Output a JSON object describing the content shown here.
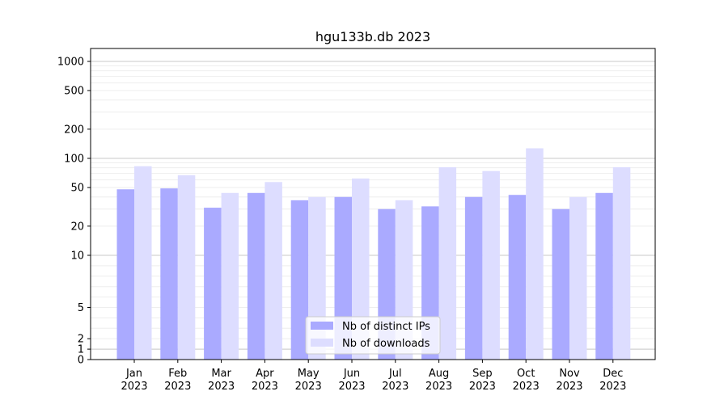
{
  "chart_data": {
    "type": "bar",
    "title": "hgu133b.db 2023",
    "xlabel": "",
    "ylabel": "",
    "categories": [
      [
        "Jan",
        "2023"
      ],
      [
        "Feb",
        "2023"
      ],
      [
        "Mar",
        "2023"
      ],
      [
        "Apr",
        "2023"
      ],
      [
        "May",
        "2023"
      ],
      [
        "Jun",
        "2023"
      ],
      [
        "Jul",
        "2023"
      ],
      [
        "Aug",
        "2023"
      ],
      [
        "Sep",
        "2023"
      ],
      [
        "Oct",
        "2023"
      ],
      [
        "Nov",
        "2023"
      ],
      [
        "Dec",
        "2023"
      ]
    ],
    "series": [
      {
        "name": "Nb of distinct IPs",
        "color": "#aaaaff",
        "values": [
          48,
          49,
          31,
          44,
          37,
          40,
          30,
          32,
          40,
          42,
          30,
          44
        ]
      },
      {
        "name": "Nb of downloads",
        "color": "#ddddff",
        "values": [
          83,
          67,
          44,
          57,
          40,
          62,
          37,
          81,
          74,
          127,
          40,
          81
        ]
      }
    ],
    "yscale": "symlog",
    "ylim": [
      0,
      1200
    ],
    "yticks": [
      0,
      1,
      2,
      5,
      10,
      20,
      50,
      100,
      200,
      500,
      1000
    ],
    "grid": true,
    "legend_position": "bottom-center"
  }
}
